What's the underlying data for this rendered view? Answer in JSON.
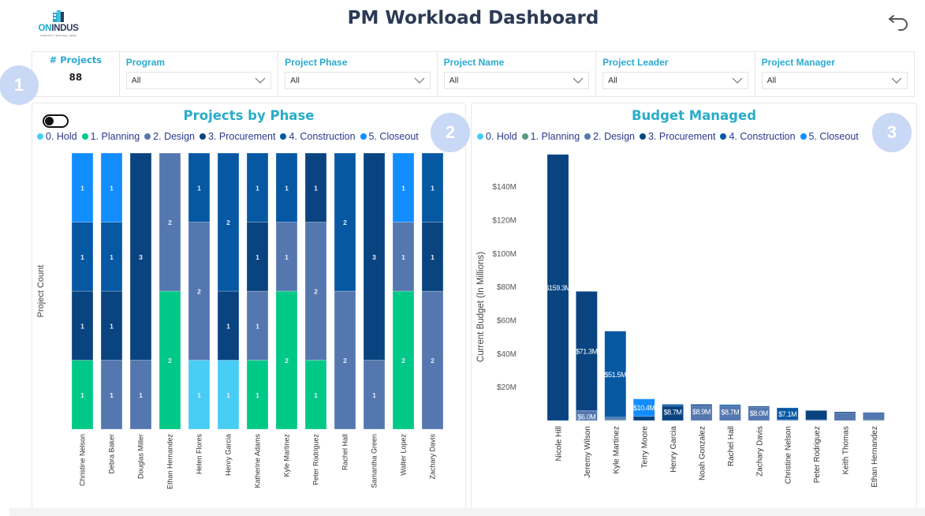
{
  "header": {
    "logo": {
      "brand_a": "ON",
      "brand_b": "INDUS",
      "tagline": "Construction • Technology • People"
    },
    "title": "PM Workload Dashboard",
    "back_icon": "undo-arrow-icon"
  },
  "badges": [
    "1",
    "2",
    "3"
  ],
  "filters": {
    "kpi": {
      "label": "# Projects",
      "value": "88"
    },
    "slicers": [
      {
        "label": "Program",
        "value": "All"
      },
      {
        "label": "Project Phase",
        "value": "All"
      },
      {
        "label": "Project Name",
        "value": "All"
      },
      {
        "label": "Project Leader",
        "value": "All"
      },
      {
        "label": "Project Manager",
        "value": "All"
      }
    ]
  },
  "phases": [
    {
      "name": "0. Hold",
      "color": "#48cdf5"
    },
    {
      "name": "1. Planning",
      "color": "#00c987"
    },
    {
      "name": "2. Design",
      "color": "#5577b0"
    },
    {
      "name": "3. Procurement",
      "color": "#0a4480"
    },
    {
      "name": "4. Construction",
      "color": "#0658a3"
    },
    {
      "name": "5. Closeout",
      "color": "#128dff"
    }
  ],
  "budget_phase_colors": [
    "#48cdf5",
    "#5a9a82",
    "#5577b0",
    "#0a4480",
    "#0658a3",
    "#128dff"
  ],
  "chart_data": [
    {
      "type": "bar",
      "stacked": true,
      "title": "Projects by Phase",
      "xlabel": "",
      "ylabel": "Project Count",
      "ylim": [
        0,
        4
      ],
      "legend": "top-left",
      "toggle": "off",
      "categories": [
        "Christine Nelson",
        "Debra Baker",
        "Douglas Miller",
        "Ethan Hernandez",
        "Helen Flores",
        "Henry Garcia",
        "Katherine Adams",
        "Kyle Martinez",
        "Peter Rodriguez",
        "Rachel Hall",
        "Samantha Green",
        "Walter Lopez",
        "Zachary Davis"
      ],
      "series": [
        {
          "name": "0. Hold",
          "values": [
            0,
            0,
            0,
            0,
            1,
            1,
            0,
            0,
            0,
            0,
            0,
            0,
            0
          ]
        },
        {
          "name": "1. Planning",
          "values": [
            1,
            0,
            0,
            2,
            0,
            0,
            1,
            2,
            1,
            0,
            0,
            2,
            0
          ]
        },
        {
          "name": "2. Design",
          "values": [
            0,
            1,
            1,
            2,
            2,
            0,
            1,
            1,
            2,
            2,
            1,
            1,
            2
          ]
        },
        {
          "name": "3. Procurement",
          "values": [
            1,
            1,
            3,
            0,
            0,
            1,
            1,
            0,
            1,
            0,
            3,
            0,
            1
          ]
        },
        {
          "name": "4. Construction",
          "values": [
            1,
            1,
            0,
            0,
            1,
            2,
            1,
            1,
            0,
            2,
            0,
            0,
            1
          ]
        },
        {
          "name": "5. Closeout",
          "values": [
            1,
            1,
            0,
            0,
            0,
            0,
            0,
            0,
            0,
            0,
            0,
            1,
            0
          ]
        }
      ]
    },
    {
      "type": "bar",
      "stacked": true,
      "title": "Budget Managed",
      "xlabel": "",
      "ylabel": "Current Budget (In Millions)",
      "unit": "$M",
      "ylim": [
        0,
        160
      ],
      "yticks": [
        20,
        40,
        60,
        80,
        100,
        120,
        140
      ],
      "ytick_labels": [
        "$20M",
        "$40M",
        "$60M",
        "$80M",
        "$100M",
        "$120M",
        "$140M"
      ],
      "legend": "top-left",
      "categories": [
        "Nicole Hill",
        "Jeremy Wilson",
        "Kyle Martinez",
        "Terry Moore",
        "Henry Garcia",
        "Noah Gonzalez",
        "Rachel Hall",
        "Zachary Davis",
        "Christine Nelson",
        "Peter Rodriguez",
        "Keith Thomas",
        "Ethan Hernandez"
      ],
      "series": [
        {
          "name": "0. Hold",
          "values": [
            0,
            0,
            0,
            0,
            0,
            0,
            0,
            0,
            0,
            0,
            0,
            0
          ]
        },
        {
          "name": "1. Planning",
          "values": [
            0,
            0,
            0.5,
            0,
            0,
            0,
            0,
            0,
            0,
            0,
            0,
            0.4
          ]
        },
        {
          "name": "2. Design",
          "values": [
            0,
            6.0,
            1.5,
            0,
            0,
            8.9,
            8.7,
            8.0,
            0.5,
            0.5,
            4.5,
            4.5
          ]
        },
        {
          "name": "3. Procurement",
          "values": [
            159.3,
            71.3,
            0,
            2.5,
            8.7,
            0.8,
            0,
            0.6,
            0,
            5.5,
            0.7,
            0
          ]
        },
        {
          "name": "4. Construction",
          "values": [
            0,
            0,
            51.5,
            0,
            1.0,
            0,
            0.8,
            0,
            7.1,
            0,
            0,
            0
          ]
        },
        {
          "name": "5. Closeout",
          "values": [
            0,
            0,
            0,
            10.4,
            0,
            0,
            0,
            0,
            0,
            0,
            0,
            0
          ]
        }
      ],
      "data_labels": [
        {
          "category": "Nicole Hill",
          "series": "3. Procurement",
          "text": "$159.3M"
        },
        {
          "category": "Jeremy Wilson",
          "series": "3. Procurement",
          "text": "$71.3M"
        },
        {
          "category": "Jeremy Wilson",
          "series": "2. Design",
          "text": "$6.0M"
        },
        {
          "category": "Kyle Martinez",
          "series": "4. Construction",
          "text": "$51.5M"
        },
        {
          "category": "Terry Moore",
          "series": "5. Closeout",
          "text": "$10.4M"
        },
        {
          "category": "Henry Garcia",
          "series": "3. Procurement",
          "text": "$8.7M"
        },
        {
          "category": "Noah Gonzalez",
          "series": "2. Design",
          "text": "$8.9M"
        },
        {
          "category": "Rachel Hall",
          "series": "2. Design",
          "text": "$8.7M"
        },
        {
          "category": "Zachary Davis",
          "series": "2. Design",
          "text": "$8.0M"
        },
        {
          "category": "Christine Nelson",
          "series": "4. Construction",
          "text": "$7.1M"
        }
      ]
    }
  ]
}
